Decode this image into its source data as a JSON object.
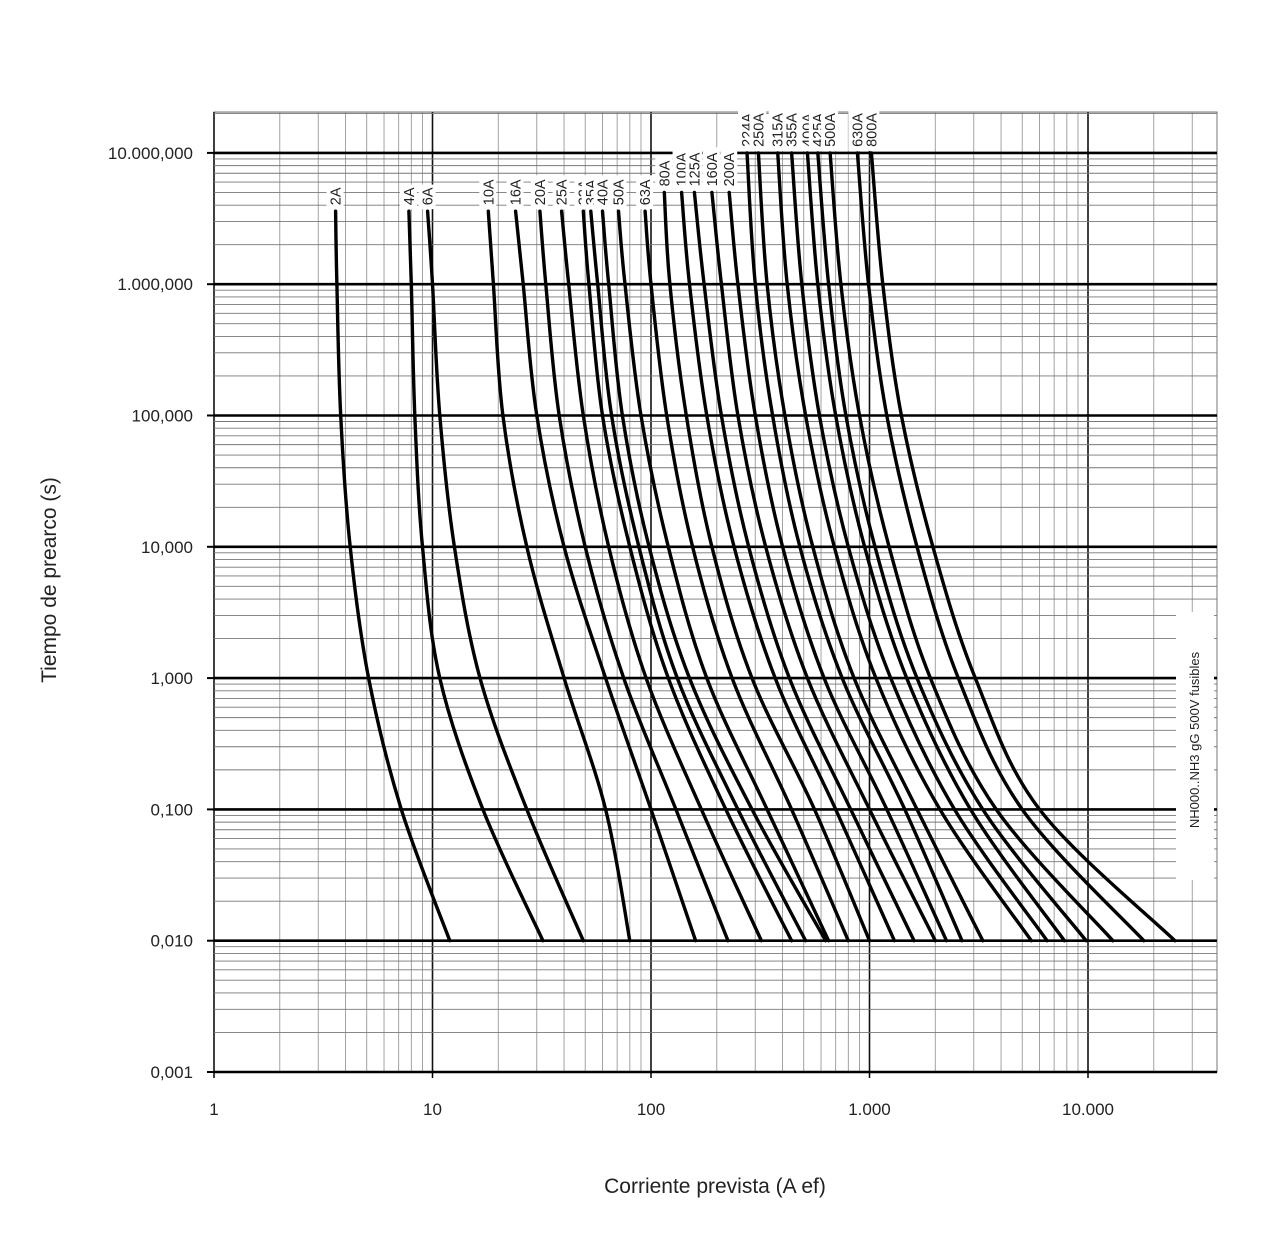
{
  "chart_data": {
    "type": "line",
    "title": "",
    "xlabel": "Corriente prevista (A ef)",
    "ylabel": "Tiempo de prearco (s)",
    "xscale": "log",
    "yscale": "log",
    "xlim": [
      1,
      46000
    ],
    "ylim": [
      0.001,
      30000
    ],
    "grid": true,
    "annotation": "NH000..NH3 gG 500V fusibles",
    "x_tick_labels": [
      {
        "value": 1,
        "label": "1"
      },
      {
        "value": 10,
        "label": "10"
      },
      {
        "value": 100,
        "label": "100"
      },
      {
        "value": 1000,
        "label": "1.000"
      },
      {
        "value": 10000,
        "label": "10.000"
      }
    ],
    "y_tick_labels": [
      {
        "value": 10000,
        "label": "10.000,000"
      },
      {
        "value": 1000,
        "label": "1.000,000"
      },
      {
        "value": 100,
        "label": "100,000"
      },
      {
        "value": 10,
        "label": "10,000"
      },
      {
        "value": 1,
        "label": "1,000"
      },
      {
        "value": 0.1,
        "label": "0,100"
      },
      {
        "value": 0.01,
        "label": "0,010"
      },
      {
        "value": 0.001,
        "label": "0,001"
      }
    ],
    "series": [
      {
        "name": "2A",
        "points": [
          [
            3.6,
            3600
          ],
          [
            3.65,
            1000
          ],
          [
            3.8,
            100
          ],
          [
            4.2,
            10
          ],
          [
            5.1,
            1
          ],
          [
            7.2,
            0.1
          ],
          [
            12,
            0.01
          ]
        ]
      },
      {
        "name": "4A",
        "points": [
          [
            7.8,
            3600
          ],
          [
            8.0,
            1000
          ],
          [
            8.3,
            100
          ],
          [
            9.0,
            10
          ],
          [
            10.8,
            1
          ],
          [
            17,
            0.1
          ],
          [
            32,
            0.01
          ]
        ]
      },
      {
        "name": "6A",
        "points": [
          [
            9.5,
            3600
          ],
          [
            10.0,
            1000
          ],
          [
            10.8,
            100
          ],
          [
            12.6,
            10
          ],
          [
            16.5,
            1
          ],
          [
            27,
            0.1
          ],
          [
            49,
            0.01
          ]
        ]
      },
      {
        "name": "10A",
        "points": [
          [
            18,
            3600
          ],
          [
            19,
            1000
          ],
          [
            21,
            100
          ],
          [
            27,
            10
          ],
          [
            40,
            1
          ],
          [
            62,
            0.1
          ],
          [
            80,
            0.01
          ]
        ]
      },
      {
        "name": "16A",
        "points": [
          [
            24,
            3600
          ],
          [
            26,
            1000
          ],
          [
            30,
            100
          ],
          [
            40,
            10
          ],
          [
            62,
            1
          ],
          [
            100,
            0.1
          ],
          [
            160,
            0.01
          ]
        ]
      },
      {
        "name": "20A",
        "points": [
          [
            31,
            3600
          ],
          [
            33,
            1000
          ],
          [
            38,
            100
          ],
          [
            50,
            10
          ],
          [
            75,
            1
          ],
          [
            130,
            0.1
          ],
          [
            225,
            0.01
          ]
        ]
      },
      {
        "name": "25A",
        "points": [
          [
            39,
            3600
          ],
          [
            42,
            1000
          ],
          [
            49,
            100
          ],
          [
            64,
            10
          ],
          [
            95,
            1
          ],
          [
            170,
            0.1
          ],
          [
            320,
            0.01
          ]
        ]
      },
      {
        "name": "32A",
        "points": [
          [
            49,
            3600
          ],
          [
            52,
            1000
          ],
          [
            60,
            100
          ],
          [
            80,
            10
          ],
          [
            120,
            1
          ],
          [
            220,
            0.1
          ],
          [
            440,
            0.01
          ]
        ]
      },
      {
        "name": "35A",
        "points": [
          [
            53,
            3600
          ],
          [
            57,
            1000
          ],
          [
            66,
            100
          ],
          [
            88,
            10
          ],
          [
            132,
            1
          ],
          [
            250,
            0.1
          ],
          [
            510,
            0.01
          ]
        ]
      },
      {
        "name": "40A",
        "points": [
          [
            60,
            3600
          ],
          [
            64,
            1000
          ],
          [
            74,
            100
          ],
          [
            98,
            10
          ],
          [
            150,
            1
          ],
          [
            290,
            0.1
          ],
          [
            630,
            0.01
          ]
        ]
      },
      {
        "name": "50A",
        "points": [
          [
            71,
            3600
          ],
          [
            76,
            1000
          ],
          [
            90,
            100
          ],
          [
            120,
            10
          ],
          [
            180,
            1
          ],
          [
            340,
            0.1
          ],
          [
            650,
            0.01
          ]
        ]
      },
      {
        "name": "63A",
        "points": [
          [
            94,
            3600
          ],
          [
            100,
            1000
          ],
          [
            118,
            100
          ],
          [
            155,
            10
          ],
          [
            235,
            1
          ],
          [
            440,
            0.1
          ],
          [
            800,
            0.01
          ]
        ]
      },
      {
        "name": "80A",
        "points": [
          [
            115,
            5000
          ],
          [
            122,
            1000
          ],
          [
            145,
            100
          ],
          [
            190,
            10
          ],
          [
            290,
            1
          ],
          [
            560,
            0.1
          ],
          [
            1000,
            0.01
          ]
        ]
      },
      {
        "name": "100A",
        "points": [
          [
            138,
            5000
          ],
          [
            150,
            1000
          ],
          [
            180,
            100
          ],
          [
            240,
            10
          ],
          [
            370,
            1
          ],
          [
            700,
            0.1
          ],
          [
            1300,
            0.01
          ]
        ]
      },
      {
        "name": "125A",
        "points": [
          [
            158,
            5000
          ],
          [
            175,
            1000
          ],
          [
            210,
            100
          ],
          [
            280,
            10
          ],
          [
            430,
            1
          ],
          [
            820,
            0.1
          ],
          [
            1600,
            0.01
          ]
        ]
      },
      {
        "name": "160A",
        "points": [
          [
            190,
            5000
          ],
          [
            210,
            1000
          ],
          [
            250,
            100
          ],
          [
            335,
            10
          ],
          [
            520,
            1
          ],
          [
            1000,
            0.1
          ],
          [
            2000,
            0.01
          ]
        ]
      },
      {
        "name": "200A",
        "points": [
          [
            228,
            5000
          ],
          [
            250,
            1000
          ],
          [
            300,
            100
          ],
          [
            400,
            10
          ],
          [
            620,
            1
          ],
          [
            1200,
            0.1
          ],
          [
            2250,
            0.01
          ]
        ]
      },
      {
        "name": "224A",
        "points": [
          [
            275,
            10000
          ],
          [
            300,
            1000
          ],
          [
            360,
            100
          ],
          [
            480,
            10
          ],
          [
            750,
            1
          ],
          [
            1450,
            0.1
          ],
          [
            2650,
            0.01
          ]
        ]
      },
      {
        "name": "250A",
        "points": [
          [
            310,
            10000
          ],
          [
            340,
            1000
          ],
          [
            410,
            100
          ],
          [
            550,
            10
          ],
          [
            850,
            1
          ],
          [
            1650,
            0.1
          ],
          [
            3300,
            0.01
          ]
        ]
      },
      {
        "name": "315A",
        "points": [
          [
            380,
            10000
          ],
          [
            420,
            1000
          ],
          [
            510,
            100
          ],
          [
            690,
            10
          ],
          [
            1070,
            1
          ],
          [
            2100,
            0.1
          ],
          [
            5500,
            0.01
          ]
        ]
      },
      {
        "name": "355A",
        "points": [
          [
            440,
            10000
          ],
          [
            490,
            1000
          ],
          [
            590,
            100
          ],
          [
            800,
            10
          ],
          [
            1250,
            1
          ],
          [
            2450,
            0.1
          ],
          [
            6500,
            0.01
          ]
        ]
      },
      {
        "name": "400A",
        "points": [
          [
            520,
            10000
          ],
          [
            580,
            1000
          ],
          [
            700,
            100
          ],
          [
            950,
            10
          ],
          [
            1480,
            1
          ],
          [
            2900,
            0.1
          ],
          [
            7800,
            0.01
          ]
        ]
      },
      {
        "name": "425A",
        "points": [
          [
            580,
            10000
          ],
          [
            650,
            1000
          ],
          [
            780,
            100
          ],
          [
            1060,
            10
          ],
          [
            1650,
            1
          ],
          [
            3300,
            0.1
          ],
          [
            9800,
            0.01
          ]
        ]
      },
      {
        "name": "500A",
        "points": [
          [
            660,
            10000
          ],
          [
            740,
            1000
          ],
          [
            900,
            100
          ],
          [
            1230,
            10
          ],
          [
            1900,
            1
          ],
          [
            3800,
            0.1
          ],
          [
            13000,
            0.01
          ]
        ]
      },
      {
        "name": "630A",
        "points": [
          [
            880,
            10000
          ],
          [
            990,
            1000
          ],
          [
            1200,
            100
          ],
          [
            1650,
            10
          ],
          [
            2550,
            1
          ],
          [
            5000,
            0.1
          ],
          [
            18000,
            0.01
          ]
        ]
      },
      {
        "name": "800A",
        "points": [
          [
            1020,
            10000
          ],
          [
            1150,
            1000
          ],
          [
            1400,
            100
          ],
          [
            1950,
            10
          ],
          [
            3050,
            1
          ],
          [
            6000,
            0.1
          ],
          [
            25000,
            0.01
          ]
        ]
      }
    ]
  }
}
